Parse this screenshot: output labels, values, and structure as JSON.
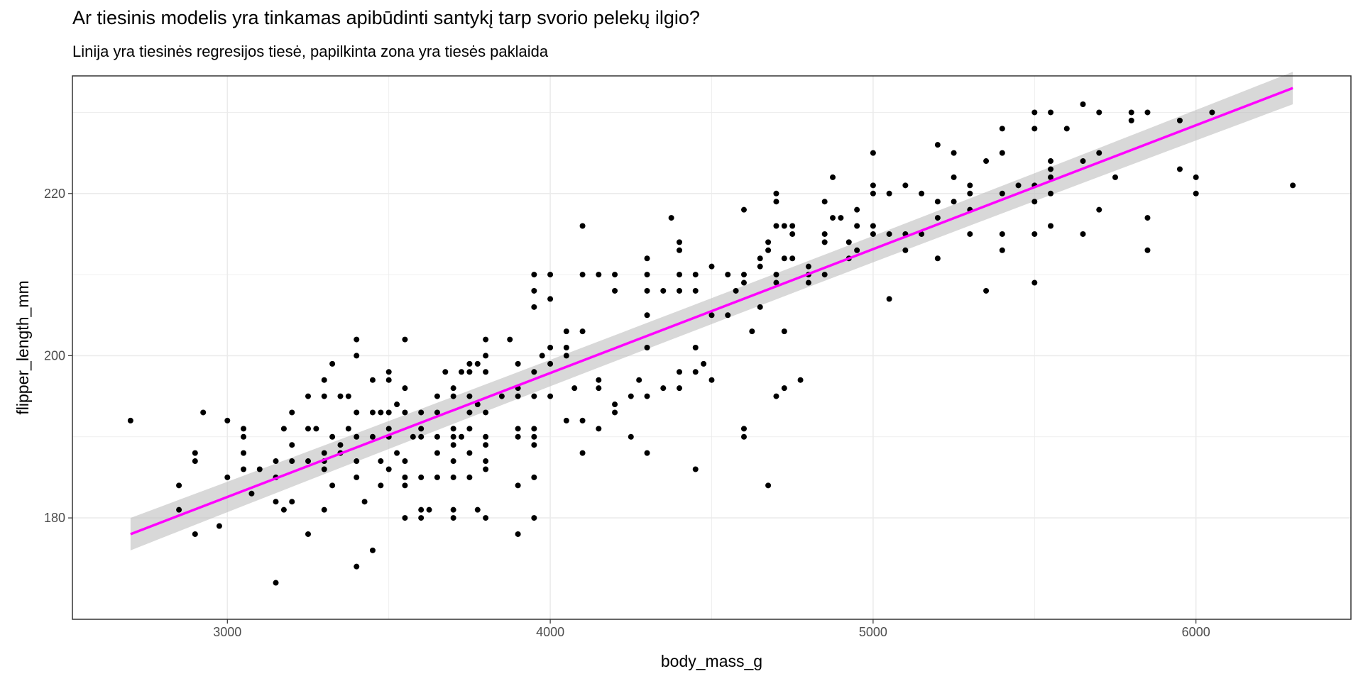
{
  "chart_data": {
    "type": "scatter",
    "title": "Ar tiesinis modelis yra tinkamas apibūdinti santykį tarp svorio pelekų ilgio?",
    "subtitle": "Linija yra tiesinės regresijos tiesė, papilkinta zona yra tiesės paklaida",
    "xlabel": "body_mass_g",
    "ylabel": "flipper_length_mm",
    "xlim": [
      2520,
      6480
    ],
    "ylim": [
      167.5,
      234.5
    ],
    "x_ticks": [
      3000,
      4000,
      5000,
      6000
    ],
    "y_ticks": [
      180,
      200,
      220
    ],
    "x_minor": [
      3500,
      4500,
      5500
    ],
    "y_minor": [
      190,
      210,
      230
    ],
    "x_tick_labels": [
      "3000",
      "4000",
      "5000",
      "6000"
    ],
    "y_tick_labels": [
      "180",
      "200",
      "220"
    ],
    "grid": true,
    "colors": {
      "points": "#000000",
      "line": "#ff00ff",
      "band": "#bebebe",
      "grid": "#ebebeb",
      "panel_border": "#333333"
    },
    "regression": {
      "x_start": 2700,
      "y_start": 178.0,
      "x_end": 6300,
      "y_end": 233.0,
      "se_min": 1.6,
      "se_max": 2.0
    },
    "points": [
      [
        2700,
        192
      ],
      [
        2850,
        184
      ],
      [
        2850,
        181
      ],
      [
        2900,
        188
      ],
      [
        2900,
        187
      ],
      [
        2900,
        178
      ],
      [
        2925,
        193
      ],
      [
        2975,
        179
      ],
      [
        3000,
        192
      ],
      [
        3000,
        185
      ],
      [
        3050,
        191
      ],
      [
        3050,
        190
      ],
      [
        3050,
        188
      ],
      [
        3050,
        186
      ],
      [
        3075,
        183
      ],
      [
        3100,
        186
      ],
      [
        3150,
        187
      ],
      [
        3150,
        185
      ],
      [
        3150,
        182
      ],
      [
        3150,
        172
      ],
      [
        3175,
        191
      ],
      [
        3175,
        181
      ],
      [
        3200,
        193
      ],
      [
        3200,
        189
      ],
      [
        3200,
        187
      ],
      [
        3200,
        182
      ],
      [
        3250,
        195
      ],
      [
        3250,
        191
      ],
      [
        3250,
        187
      ],
      [
        3250,
        178
      ],
      [
        3275,
        191
      ],
      [
        3300,
        197
      ],
      [
        3300,
        195
      ],
      [
        3300,
        188
      ],
      [
        3300,
        187
      ],
      [
        3300,
        186
      ],
      [
        3300,
        181
      ],
      [
        3325,
        199
      ],
      [
        3325,
        190
      ],
      [
        3325,
        184
      ],
      [
        3350,
        195
      ],
      [
        3350,
        189
      ],
      [
        3350,
        188
      ],
      [
        3375,
        195
      ],
      [
        3375,
        191
      ],
      [
        3400,
        202
      ],
      [
        3400,
        200
      ],
      [
        3400,
        193
      ],
      [
        3400,
        190
      ],
      [
        3400,
        187
      ],
      [
        3400,
        185
      ],
      [
        3400,
        174
      ],
      [
        3425,
        182
      ],
      [
        3450,
        197
      ],
      [
        3450,
        193
      ],
      [
        3450,
        190
      ],
      [
        3450,
        176
      ],
      [
        3475,
        193
      ],
      [
        3475,
        187
      ],
      [
        3475,
        184
      ],
      [
        3500,
        198
      ],
      [
        3500,
        197
      ],
      [
        3500,
        193
      ],
      [
        3500,
        191
      ],
      [
        3500,
        190
      ],
      [
        3500,
        186
      ],
      [
        3525,
        188
      ],
      [
        3525,
        194
      ],
      [
        3550,
        202
      ],
      [
        3550,
        196
      ],
      [
        3550,
        193
      ],
      [
        3550,
        187
      ],
      [
        3550,
        185
      ],
      [
        3550,
        184
      ],
      [
        3550,
        180
      ],
      [
        3575,
        190
      ],
      [
        3600,
        193
      ],
      [
        3600,
        191
      ],
      [
        3600,
        190
      ],
      [
        3600,
        185
      ],
      [
        3600,
        181
      ],
      [
        3600,
        180
      ],
      [
        3625,
        181
      ],
      [
        3650,
        195
      ],
      [
        3650,
        193
      ],
      [
        3650,
        190
      ],
      [
        3650,
        188
      ],
      [
        3650,
        185
      ],
      [
        3675,
        198
      ],
      [
        3700,
        196
      ],
      [
        3700,
        195
      ],
      [
        3700,
        191
      ],
      [
        3700,
        190
      ],
      [
        3700,
        189
      ],
      [
        3700,
        187
      ],
      [
        3700,
        185
      ],
      [
        3700,
        181
      ],
      [
        3700,
        180
      ],
      [
        3725,
        198
      ],
      [
        3725,
        190
      ],
      [
        3750,
        199
      ],
      [
        3750,
        198
      ],
      [
        3750,
        195
      ],
      [
        3750,
        193
      ],
      [
        3750,
        191
      ],
      [
        3750,
        188
      ],
      [
        3750,
        185
      ],
      [
        3775,
        199
      ],
      [
        3775,
        194
      ],
      [
        3775,
        181
      ],
      [
        3800,
        202
      ],
      [
        3800,
        200
      ],
      [
        3800,
        198
      ],
      [
        3800,
        193
      ],
      [
        3800,
        190
      ],
      [
        3800,
        189
      ],
      [
        3800,
        187
      ],
      [
        3800,
        186
      ],
      [
        3800,
        180
      ],
      [
        3850,
        195
      ],
      [
        3875,
        202
      ],
      [
        3900,
        199
      ],
      [
        3900,
        196
      ],
      [
        3900,
        195
      ],
      [
        3900,
        191
      ],
      [
        3900,
        190
      ],
      [
        3900,
        184
      ],
      [
        3900,
        178
      ],
      [
        3950,
        210
      ],
      [
        3950,
        208
      ],
      [
        3950,
        206
      ],
      [
        3950,
        198
      ],
      [
        3950,
        195
      ],
      [
        3950,
        191
      ],
      [
        3950,
        190
      ],
      [
        3950,
        189
      ],
      [
        3950,
        185
      ],
      [
        3950,
        180
      ],
      [
        3975,
        200
      ],
      [
        4000,
        210
      ],
      [
        4000,
        207
      ],
      [
        4000,
        201
      ],
      [
        4000,
        199
      ],
      [
        4000,
        195
      ],
      [
        4050,
        203
      ],
      [
        4050,
        201
      ],
      [
        4050,
        200
      ],
      [
        4050,
        192
      ],
      [
        4075,
        196
      ],
      [
        4100,
        216
      ],
      [
        4100,
        210
      ],
      [
        4100,
        203
      ],
      [
        4100,
        192
      ],
      [
        4100,
        188
      ],
      [
        4150,
        210
      ],
      [
        4150,
        197
      ],
      [
        4150,
        196
      ],
      [
        4150,
        191
      ],
      [
        4200,
        210
      ],
      [
        4200,
        208
      ],
      [
        4200,
        194
      ],
      [
        4200,
        193
      ],
      [
        4250,
        195
      ],
      [
        4250,
        190
      ],
      [
        4275,
        197
      ],
      [
        4300,
        212
      ],
      [
        4300,
        210
      ],
      [
        4300,
        208
      ],
      [
        4300,
        205
      ],
      [
        4300,
        201
      ],
      [
        4300,
        195
      ],
      [
        4300,
        188
      ],
      [
        4350,
        208
      ],
      [
        4350,
        196
      ],
      [
        4375,
        217
      ],
      [
        4400,
        214
      ],
      [
        4400,
        213
      ],
      [
        4400,
        210
      ],
      [
        4400,
        208
      ],
      [
        4400,
        198
      ],
      [
        4400,
        196
      ],
      [
        4450,
        210
      ],
      [
        4450,
        208
      ],
      [
        4450,
        201
      ],
      [
        4450,
        198
      ],
      [
        4450,
        186
      ],
      [
        4475,
        199
      ],
      [
        4500,
        211
      ],
      [
        4500,
        205
      ],
      [
        4500,
        197
      ],
      [
        4550,
        210
      ],
      [
        4550,
        205
      ],
      [
        4575,
        208
      ],
      [
        4600,
        218
      ],
      [
        4600,
        210
      ],
      [
        4600,
        209
      ],
      [
        4600,
        191
      ],
      [
        4600,
        190
      ],
      [
        4625,
        203
      ],
      [
        4650,
        212
      ],
      [
        4650,
        211
      ],
      [
        4650,
        206
      ],
      [
        4675,
        213
      ],
      [
        4675,
        214
      ],
      [
        4675,
        184
      ],
      [
        4700,
        195
      ],
      [
        4725,
        196
      ],
      [
        4700,
        220
      ],
      [
        4700,
        219
      ],
      [
        4700,
        216
      ],
      [
        4700,
        210
      ],
      [
        4700,
        209
      ],
      [
        4725,
        216
      ],
      [
        4725,
        212
      ],
      [
        4725,
        203
      ],
      [
        4750,
        216
      ],
      [
        4750,
        215
      ],
      [
        4750,
        212
      ],
      [
        4775,
        197
      ],
      [
        4800,
        211
      ],
      [
        4800,
        210
      ],
      [
        4800,
        209
      ],
      [
        4850,
        219
      ],
      [
        4850,
        215
      ],
      [
        4850,
        214
      ],
      [
        4850,
        210
      ],
      [
        4875,
        222
      ],
      [
        4875,
        217
      ],
      [
        4900,
        217
      ],
      [
        4925,
        214
      ],
      [
        4925,
        212
      ],
      [
        4950,
        218
      ],
      [
        4950,
        216
      ],
      [
        4950,
        213
      ],
      [
        5000,
        225
      ],
      [
        5000,
        221
      ],
      [
        5000,
        220
      ],
      [
        5000,
        216
      ],
      [
        5000,
        215
      ],
      [
        5050,
        220
      ],
      [
        5050,
        215
      ],
      [
        5050,
        207
      ],
      [
        5100,
        221
      ],
      [
        5100,
        215
      ],
      [
        5100,
        213
      ],
      [
        5150,
        220
      ],
      [
        5150,
        215
      ],
      [
        5200,
        226
      ],
      [
        5200,
        219
      ],
      [
        5200,
        217
      ],
      [
        5200,
        212
      ],
      [
        5250,
        225
      ],
      [
        5250,
        222
      ],
      [
        5250,
        219
      ],
      [
        5300,
        221
      ],
      [
        5300,
        220
      ],
      [
        5300,
        218
      ],
      [
        5300,
        215
      ],
      [
        5350,
        224
      ],
      [
        5350,
        208
      ],
      [
        5400,
        228
      ],
      [
        5400,
        225
      ],
      [
        5400,
        220
      ],
      [
        5400,
        215
      ],
      [
        5400,
        213
      ],
      [
        5450,
        221
      ],
      [
        5500,
        230
      ],
      [
        5500,
        228
      ],
      [
        5500,
        221
      ],
      [
        5500,
        219
      ],
      [
        5500,
        215
      ],
      [
        5500,
        209
      ],
      [
        5550,
        230
      ],
      [
        5550,
        224
      ],
      [
        5550,
        223
      ],
      [
        5550,
        222
      ],
      [
        5550,
        220
      ],
      [
        5550,
        216
      ],
      [
        5600,
        228
      ],
      [
        5650,
        231
      ],
      [
        5650,
        224
      ],
      [
        5650,
        215
      ],
      [
        5700,
        230
      ],
      [
        5700,
        225
      ],
      [
        5700,
        218
      ],
      [
        5750,
        222
      ],
      [
        5800,
        230
      ],
      [
        5800,
        229
      ],
      [
        5850,
        230
      ],
      [
        5850,
        217
      ],
      [
        5850,
        213
      ],
      [
        5950,
        229
      ],
      [
        5950,
        223
      ],
      [
        6000,
        222
      ],
      [
        6000,
        220
      ],
      [
        6050,
        230
      ],
      [
        6300,
        221
      ]
    ]
  }
}
